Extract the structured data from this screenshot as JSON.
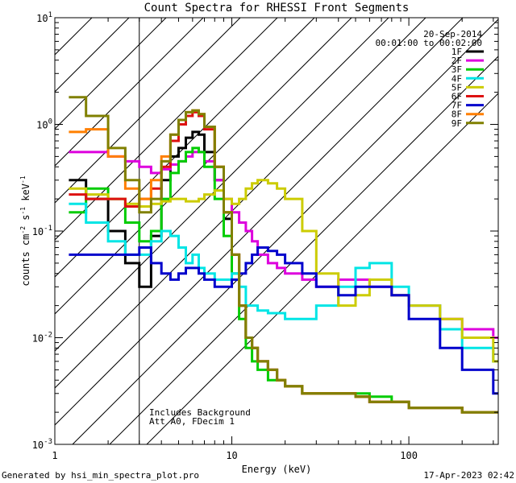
{
  "chart_data": {
    "type": "line",
    "title": "Count Spectra for RHESSI Front Segments",
    "xlabel": "Energy (keV)",
    "ylabel_parts": [
      "counts cm",
      "-2",
      " s",
      "-1",
      " keV",
      "-1"
    ],
    "xscale": "log",
    "yscale": "log",
    "xlim": [
      1,
      320
    ],
    "ylim": [
      0.001,
      10
    ],
    "x_ticks": [
      {
        "value": 1,
        "label": "1"
      },
      {
        "value": 10,
        "label": "10"
      },
      {
        "value": 100,
        "label": "100"
      }
    ],
    "y_ticks": [
      {
        "value": 0.001,
        "base": "10",
        "exp": "-3"
      },
      {
        "value": 0.01,
        "base": "10",
        "exp": "-2"
      },
      {
        "value": 0.1,
        "base": "10",
        "exp": "-1"
      },
      {
        "value": 1,
        "base": "10",
        "exp": "0"
      },
      {
        "value": 10,
        "base": "10",
        "exp": "1"
      }
    ],
    "hatched_region_keV": [
      1,
      3
    ],
    "date": "20-Sep-2014",
    "time_range": "00:01:00 to 00:02:00",
    "annotations": [
      "Includes Background",
      "Att A0, FDecim 1"
    ],
    "series": [
      {
        "name": "1F",
        "color": "#000000",
        "x": [
          1.2,
          1.5,
          2,
          2.5,
          3,
          3.5,
          4,
          4.5,
          5,
          5.5,
          6,
          6.5,
          7,
          8,
          9,
          10,
          11,
          12,
          13,
          14,
          16,
          18,
          20,
          25,
          30,
          40,
          50,
          60,
          80,
          100,
          150,
          200,
          300
        ],
        "y": [
          0.3,
          0.2,
          0.1,
          0.05,
          0.03,
          0.09,
          0.3,
          0.5,
          0.6,
          0.75,
          0.85,
          0.8,
          0.55,
          0.3,
          0.13,
          0.06,
          0.02,
          0.01,
          0.008,
          0.006,
          0.005,
          0.004,
          0.0035,
          0.003,
          0.003,
          0.003,
          0.0028,
          0.0025,
          0.0025,
          0.0022,
          0.0022,
          0.002,
          0.002
        ]
      },
      {
        "name": "2F",
        "color": "#dd00dd",
        "x": [
          1.2,
          1.5,
          2,
          2.5,
          3,
          3.5,
          4,
          4.5,
          5,
          5.5,
          6,
          6.5,
          7,
          8,
          9,
          10,
          11,
          12,
          13,
          14,
          16,
          18,
          20,
          25,
          30,
          40,
          50,
          60,
          80,
          100,
          150,
          200,
          300
        ],
        "y": [
          0.55,
          0.55,
          0.5,
          0.45,
          0.4,
          0.35,
          0.38,
          0.42,
          0.45,
          0.5,
          0.55,
          0.55,
          0.45,
          0.3,
          0.2,
          0.15,
          0.12,
          0.1,
          0.08,
          0.06,
          0.05,
          0.045,
          0.04,
          0.035,
          0.03,
          0.035,
          0.035,
          0.03,
          0.025,
          0.02,
          0.015,
          0.012,
          0.01
        ]
      },
      {
        "name": "3F",
        "color": "#00cc00",
        "x": [
          1.2,
          1.5,
          2,
          2.5,
          3,
          3.5,
          4,
          4.5,
          5,
          5.5,
          6,
          6.5,
          7,
          8,
          9,
          10,
          11,
          12,
          13,
          14,
          16,
          18,
          20,
          25,
          30,
          40,
          50,
          60,
          80,
          100,
          150,
          200,
          300
        ],
        "y": [
          0.15,
          0.25,
          0.2,
          0.12,
          0.08,
          0.1,
          0.2,
          0.35,
          0.45,
          0.55,
          0.6,
          0.55,
          0.4,
          0.2,
          0.09,
          0.04,
          0.015,
          0.008,
          0.006,
          0.005,
          0.004,
          0.004,
          0.0035,
          0.003,
          0.003,
          0.003,
          0.003,
          0.0028,
          0.0025,
          0.0022,
          0.0022,
          0.002,
          0.002
        ]
      },
      {
        "name": "4F",
        "color": "#00e5e5",
        "x": [
          1.2,
          1.5,
          2,
          2.5,
          3,
          3.5,
          4,
          4.5,
          5,
          5.5,
          6,
          6.5,
          7,
          8,
          9,
          10,
          11,
          12,
          13,
          14,
          16,
          18,
          20,
          25,
          30,
          40,
          50,
          60,
          80,
          100,
          150,
          200,
          300
        ],
        "y": [
          0.18,
          0.12,
          0.08,
          0.06,
          0.06,
          0.08,
          0.1,
          0.09,
          0.07,
          0.05,
          0.06,
          0.045,
          0.04,
          0.035,
          0.035,
          0.04,
          0.03,
          0.02,
          0.02,
          0.018,
          0.017,
          0.017,
          0.015,
          0.015,
          0.02,
          0.03,
          0.045,
          0.05,
          0.03,
          0.02,
          0.012,
          0.008,
          0.006
        ]
      },
      {
        "name": "5F",
        "color": "#cccc00",
        "x": [
          1.2,
          1.5,
          2,
          2.5,
          3,
          3.5,
          4,
          4.5,
          5,
          5.5,
          6,
          6.5,
          7,
          8,
          9,
          10,
          11,
          12,
          13,
          14,
          16,
          18,
          20,
          25,
          30,
          40,
          50,
          60,
          80,
          100,
          150,
          200,
          300
        ],
        "y": [
          0.25,
          0.22,
          0.2,
          0.18,
          0.17,
          0.18,
          0.19,
          0.2,
          0.2,
          0.19,
          0.19,
          0.2,
          0.22,
          0.24,
          0.2,
          0.18,
          0.2,
          0.25,
          0.28,
          0.3,
          0.28,
          0.25,
          0.2,
          0.1,
          0.04,
          0.02,
          0.025,
          0.035,
          0.025,
          0.02,
          0.015,
          0.01,
          0.006
        ]
      },
      {
        "name": "6F",
        "color": "#dd1111",
        "x": [
          1.2,
          1.5,
          2,
          2.5,
          3,
          3.5,
          4,
          4.5,
          5,
          5.5,
          6,
          6.5,
          7,
          8,
          9,
          10,
          11,
          12,
          13,
          14,
          16,
          18,
          20,
          25,
          30,
          40,
          50,
          60,
          80,
          100,
          150,
          200,
          300
        ],
        "y": [
          0.22,
          0.2,
          0.2,
          0.17,
          0.2,
          0.25,
          0.4,
          0.7,
          1.0,
          1.2,
          1.3,
          1.2,
          0.9,
          0.4,
          0.15,
          0.06,
          0.02,
          0.01,
          0.008,
          0.006,
          0.005,
          0.004,
          0.0035,
          0.003,
          0.003,
          0.003,
          0.0028,
          0.0025,
          0.0025,
          0.0022,
          0.0022,
          0.002,
          0.002
        ]
      },
      {
        "name": "7F",
        "color": "#0000cc",
        "x": [
          1.2,
          1.5,
          2,
          2.5,
          3,
          3.5,
          4,
          4.5,
          5,
          5.5,
          6,
          6.5,
          7,
          8,
          9,
          10,
          11,
          12,
          13,
          14,
          16,
          18,
          20,
          25,
          30,
          40,
          50,
          60,
          80,
          100,
          150,
          200,
          300
        ],
        "y": [
          0.06,
          0.06,
          0.06,
          0.06,
          0.07,
          0.05,
          0.04,
          0.035,
          0.04,
          0.045,
          0.045,
          0.04,
          0.035,
          0.03,
          0.03,
          0.035,
          0.04,
          0.05,
          0.06,
          0.07,
          0.065,
          0.06,
          0.05,
          0.04,
          0.03,
          0.025,
          0.03,
          0.03,
          0.025,
          0.015,
          0.008,
          0.005,
          0.003
        ]
      },
      {
        "name": "8F",
        "color": "#ff7f00",
        "x": [
          1.2,
          1.5,
          2,
          2.5,
          3,
          3.5,
          4,
          4.5,
          5,
          5.5,
          6,
          6.5,
          7,
          8,
          9,
          10,
          11,
          12,
          13,
          14,
          16,
          18,
          20,
          25,
          30,
          40,
          50,
          60,
          80,
          100,
          150,
          200,
          300
        ],
        "y": [
          0.85,
          0.9,
          0.5,
          0.25,
          0.2,
          0.3,
          0.5,
          0.8,
          1.1,
          1.3,
          1.35,
          1.25,
          0.95,
          0.4,
          0.15,
          0.06,
          0.02,
          0.01,
          0.008,
          0.006,
          0.005,
          0.004,
          0.0035,
          0.003,
          0.003,
          0.003,
          0.0028,
          0.0025,
          0.0025,
          0.0022,
          0.0022,
          0.002,
          0.002
        ]
      },
      {
        "name": "9F",
        "color": "#808000",
        "x": [
          1.2,
          1.5,
          2,
          2.5,
          3,
          3.5,
          4,
          4.5,
          5,
          5.5,
          6,
          6.5,
          7,
          8,
          9,
          10,
          11,
          12,
          13,
          14,
          16,
          18,
          20,
          25,
          30,
          40,
          50,
          60,
          80,
          100,
          150,
          200,
          300
        ],
        "y": [
          1.8,
          1.2,
          0.6,
          0.3,
          0.15,
          0.2,
          0.45,
          0.8,
          1.1,
          1.3,
          1.35,
          1.25,
          0.95,
          0.4,
          0.15,
          0.06,
          0.02,
          0.01,
          0.008,
          0.006,
          0.005,
          0.004,
          0.0035,
          0.003,
          0.003,
          0.003,
          0.0028,
          0.0025,
          0.0025,
          0.0022,
          0.0022,
          0.002,
          0.002
        ]
      }
    ]
  },
  "footer": {
    "left": "Generated by hsi_min_spectra_plot.pro",
    "right": "17-Apr-2023 02:42"
  }
}
